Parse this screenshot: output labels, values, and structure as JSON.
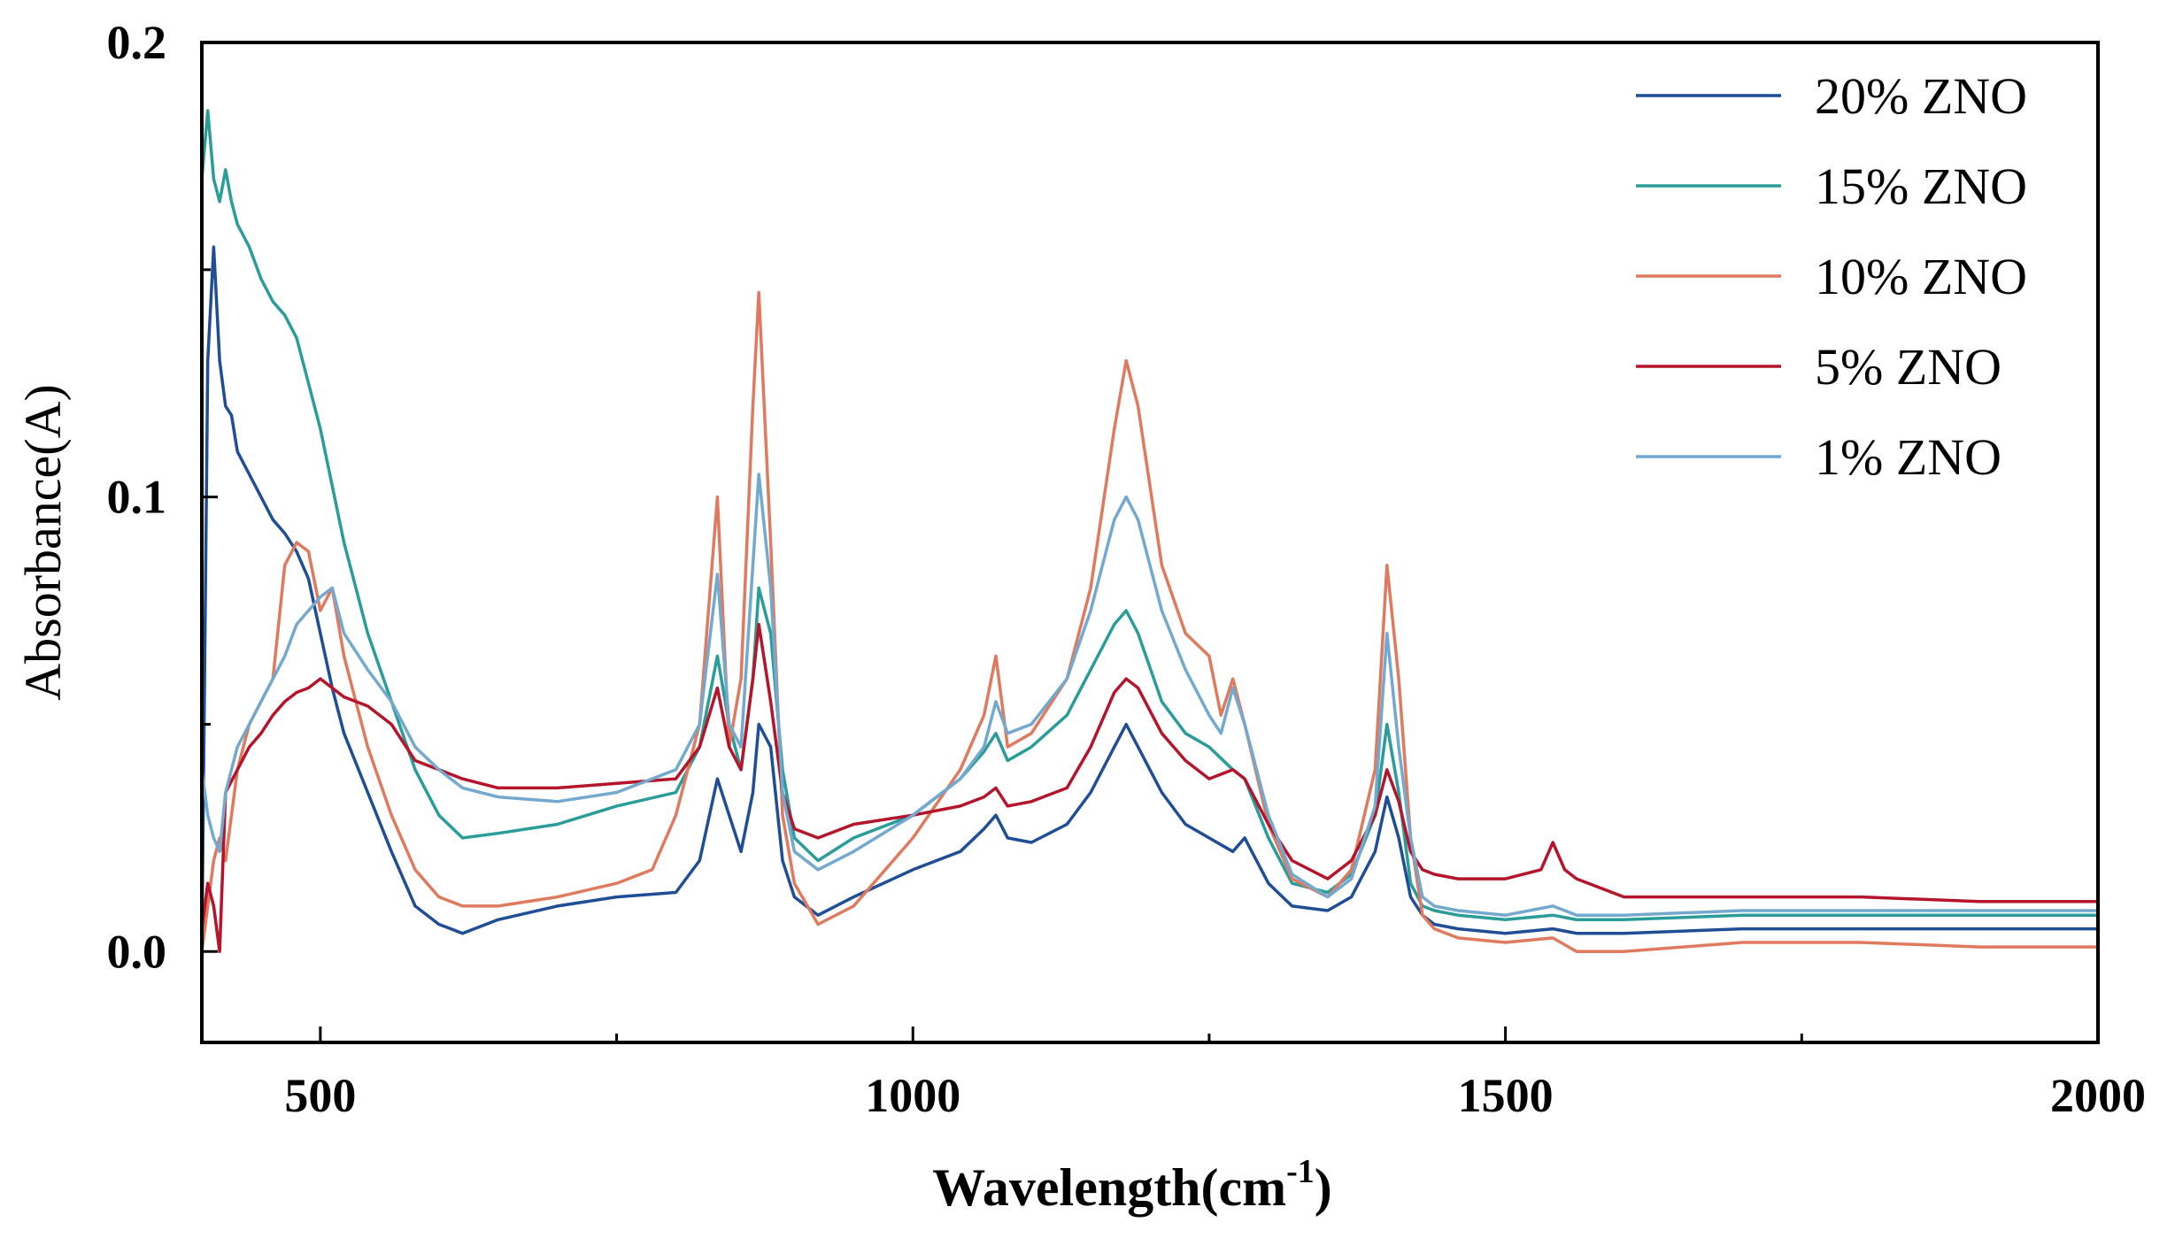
{
  "chart_data": {
    "type": "line",
    "title": "",
    "xlabel": "Wavelength(cm",
    "xlabel_sup": "-1",
    "xlabel_close": ")",
    "ylabel": "Absorbance(A)",
    "xlim": [
      400,
      2000
    ],
    "ylim": [
      -0.02,
      0.2
    ],
    "xticks": [
      500,
      1000,
      1500,
      2000
    ],
    "xtick_labels": [
      "500",
      "1000",
      "1500",
      "2000"
    ],
    "yticks": [
      0.0,
      0.1,
      0.2
    ],
    "ytick_labels": [
      "0.0",
      "0.1",
      "0.2"
    ],
    "grid": false,
    "legend_position": "top-right",
    "series": [
      {
        "name": "20% ZNO",
        "color": "#1f4e96",
        "x": [
          400,
          405,
          410,
          415,
          420,
          425,
          430,
          440,
          450,
          460,
          470,
          480,
          490,
          500,
          510,
          520,
          540,
          560,
          580,
          600,
          620,
          650,
          700,
          750,
          800,
          820,
          835,
          845,
          855,
          865,
          870,
          880,
          890,
          900,
          920,
          950,
          1000,
          1040,
          1060,
          1070,
          1080,
          1100,
          1130,
          1150,
          1170,
          1180,
          1190,
          1210,
          1230,
          1250,
          1270,
          1280,
          1300,
          1320,
          1350,
          1370,
          1390,
          1400,
          1410,
          1420,
          1430,
          1440,
          1460,
          1500,
          1540,
          1560,
          1600,
          1700,
          1800,
          1900,
          2000
        ],
        "values": [
          0.0,
          0.13,
          0.155,
          0.13,
          0.12,
          0.118,
          0.11,
          0.105,
          0.1,
          0.095,
          0.092,
          0.088,
          0.082,
          0.07,
          0.058,
          0.048,
          0.035,
          0.022,
          0.01,
          0.006,
          0.004,
          0.007,
          0.01,
          0.012,
          0.013,
          0.02,
          0.038,
          0.03,
          0.022,
          0.035,
          0.05,
          0.045,
          0.02,
          0.012,
          0.008,
          0.012,
          0.018,
          0.022,
          0.027,
          0.03,
          0.025,
          0.024,
          0.028,
          0.035,
          0.045,
          0.05,
          0.045,
          0.035,
          0.028,
          0.025,
          0.022,
          0.025,
          0.015,
          0.01,
          0.009,
          0.012,
          0.022,
          0.034,
          0.025,
          0.012,
          0.008,
          0.006,
          0.005,
          0.004,
          0.005,
          0.004,
          0.004,
          0.005,
          0.005,
          0.005,
          0.005
        ]
      },
      {
        "name": "15% ZNO",
        "color": "#2a9d9a",
        "x": [
          400,
          405,
          410,
          415,
          420,
          425,
          430,
          440,
          450,
          460,
          470,
          480,
          490,
          500,
          520,
          540,
          560,
          580,
          600,
          620,
          650,
          700,
          750,
          800,
          820,
          835,
          845,
          855,
          865,
          870,
          880,
          890,
          900,
          920,
          950,
          1000,
          1040,
          1060,
          1070,
          1080,
          1100,
          1130,
          1150,
          1170,
          1180,
          1190,
          1210,
          1230,
          1250,
          1270,
          1280,
          1300,
          1320,
          1350,
          1370,
          1390,
          1400,
          1410,
          1420,
          1430,
          1440,
          1460,
          1500,
          1540,
          1560,
          1600,
          1700,
          1800,
          1900,
          2000
        ],
        "values": [
          0.17,
          0.185,
          0.17,
          0.165,
          0.172,
          0.165,
          0.16,
          0.155,
          0.148,
          0.143,
          0.14,
          0.135,
          0.125,
          0.115,
          0.09,
          0.07,
          0.055,
          0.04,
          0.03,
          0.025,
          0.026,
          0.028,
          0.032,
          0.035,
          0.045,
          0.065,
          0.05,
          0.04,
          0.06,
          0.08,
          0.07,
          0.04,
          0.025,
          0.02,
          0.025,
          0.03,
          0.038,
          0.044,
          0.048,
          0.042,
          0.045,
          0.052,
          0.062,
          0.072,
          0.075,
          0.07,
          0.055,
          0.048,
          0.045,
          0.04,
          0.038,
          0.025,
          0.015,
          0.013,
          0.017,
          0.03,
          0.05,
          0.035,
          0.015,
          0.01,
          0.009,
          0.008,
          0.007,
          0.008,
          0.007,
          0.007,
          0.008,
          0.008,
          0.008,
          0.008
        ]
      },
      {
        "name": "10% ZNO",
        "color": "#e07a5f",
        "x": [
          400,
          405,
          410,
          415,
          420,
          430,
          440,
          450,
          460,
          470,
          480,
          490,
          500,
          510,
          520,
          540,
          560,
          580,
          600,
          620,
          650,
          700,
          750,
          780,
          800,
          820,
          835,
          845,
          855,
          865,
          870,
          880,
          890,
          900,
          920,
          950,
          1000,
          1040,
          1060,
          1070,
          1080,
          1100,
          1130,
          1150,
          1170,
          1180,
          1190,
          1210,
          1230,
          1250,
          1260,
          1270,
          1280,
          1300,
          1320,
          1350,
          1370,
          1390,
          1400,
          1410,
          1420,
          1430,
          1440,
          1460,
          1500,
          1540,
          1560,
          1600,
          1700,
          1800,
          1900,
          2000
        ],
        "values": [
          0.0,
          0.01,
          0.02,
          0.025,
          0.02,
          0.04,
          0.05,
          0.055,
          0.06,
          0.085,
          0.09,
          0.088,
          0.075,
          0.08,
          0.065,
          0.045,
          0.03,
          0.018,
          0.012,
          0.01,
          0.01,
          0.012,
          0.015,
          0.018,
          0.03,
          0.05,
          0.1,
          0.045,
          0.06,
          0.12,
          0.145,
          0.09,
          0.03,
          0.015,
          0.006,
          0.01,
          0.025,
          0.04,
          0.052,
          0.065,
          0.045,
          0.048,
          0.06,
          0.08,
          0.115,
          0.13,
          0.12,
          0.085,
          0.07,
          0.065,
          0.052,
          0.06,
          0.05,
          0.028,
          0.016,
          0.012,
          0.018,
          0.04,
          0.085,
          0.06,
          0.025,
          0.008,
          0.005,
          0.003,
          0.002,
          0.003,
          0.0,
          0.0,
          0.002,
          0.002,
          0.001,
          0.001
        ]
      },
      {
        "name": "5% ZNO",
        "color": "#b5152b",
        "x": [
          400,
          405,
          410,
          415,
          420,
          430,
          440,
          450,
          460,
          470,
          480,
          490,
          500,
          510,
          520,
          540,
          560,
          580,
          600,
          620,
          650,
          700,
          750,
          800,
          820,
          835,
          845,
          855,
          865,
          870,
          880,
          890,
          900,
          920,
          950,
          1000,
          1040,
          1060,
          1070,
          1080,
          1100,
          1130,
          1150,
          1170,
          1180,
          1190,
          1210,
          1230,
          1250,
          1270,
          1280,
          1300,
          1320,
          1350,
          1370,
          1390,
          1400,
          1410,
          1420,
          1430,
          1440,
          1460,
          1500,
          1530,
          1540,
          1550,
          1560,
          1600,
          1700,
          1800,
          1900,
          2000
        ],
        "values": [
          0.005,
          0.015,
          0.01,
          0.0,
          0.035,
          0.04,
          0.045,
          0.048,
          0.052,
          0.055,
          0.057,
          0.058,
          0.06,
          0.058,
          0.056,
          0.054,
          0.05,
          0.042,
          0.04,
          0.038,
          0.036,
          0.036,
          0.037,
          0.038,
          0.045,
          0.058,
          0.045,
          0.04,
          0.06,
          0.072,
          0.055,
          0.035,
          0.027,
          0.025,
          0.028,
          0.03,
          0.032,
          0.034,
          0.036,
          0.032,
          0.033,
          0.036,
          0.045,
          0.057,
          0.06,
          0.058,
          0.048,
          0.042,
          0.038,
          0.04,
          0.038,
          0.028,
          0.02,
          0.016,
          0.02,
          0.03,
          0.04,
          0.033,
          0.022,
          0.018,
          0.017,
          0.016,
          0.016,
          0.018,
          0.024,
          0.018,
          0.016,
          0.012,
          0.012,
          0.012,
          0.011,
          0.011
        ]
      },
      {
        "name": "1% ZNO",
        "color": "#74a9cf",
        "x": [
          400,
          405,
          410,
          415,
          420,
          430,
          440,
          450,
          460,
          470,
          480,
          490,
          500,
          510,
          520,
          540,
          560,
          580,
          600,
          620,
          650,
          700,
          750,
          800,
          820,
          835,
          845,
          855,
          865,
          870,
          880,
          890,
          900,
          920,
          950,
          1000,
          1040,
          1060,
          1070,
          1080,
          1100,
          1130,
          1150,
          1170,
          1180,
          1190,
          1210,
          1230,
          1250,
          1260,
          1270,
          1280,
          1300,
          1320,
          1350,
          1370,
          1390,
          1400,
          1410,
          1420,
          1430,
          1440,
          1460,
          1500,
          1540,
          1560,
          1600,
          1700,
          1800,
          1900,
          2000
        ],
        "values": [
          0.04,
          0.03,
          0.025,
          0.022,
          0.035,
          0.045,
          0.05,
          0.055,
          0.06,
          0.065,
          0.072,
          0.075,
          0.078,
          0.08,
          0.07,
          0.062,
          0.055,
          0.045,
          0.04,
          0.036,
          0.034,
          0.033,
          0.035,
          0.04,
          0.05,
          0.083,
          0.05,
          0.045,
          0.085,
          0.105,
          0.08,
          0.035,
          0.022,
          0.018,
          0.022,
          0.03,
          0.038,
          0.045,
          0.055,
          0.048,
          0.05,
          0.06,
          0.075,
          0.095,
          0.1,
          0.095,
          0.075,
          0.062,
          0.052,
          0.048,
          0.058,
          0.05,
          0.03,
          0.017,
          0.012,
          0.016,
          0.032,
          0.07,
          0.045,
          0.025,
          0.012,
          0.01,
          0.009,
          0.008,
          0.01,
          0.008,
          0.008,
          0.009,
          0.009,
          0.009,
          0.009
        ]
      }
    ]
  }
}
